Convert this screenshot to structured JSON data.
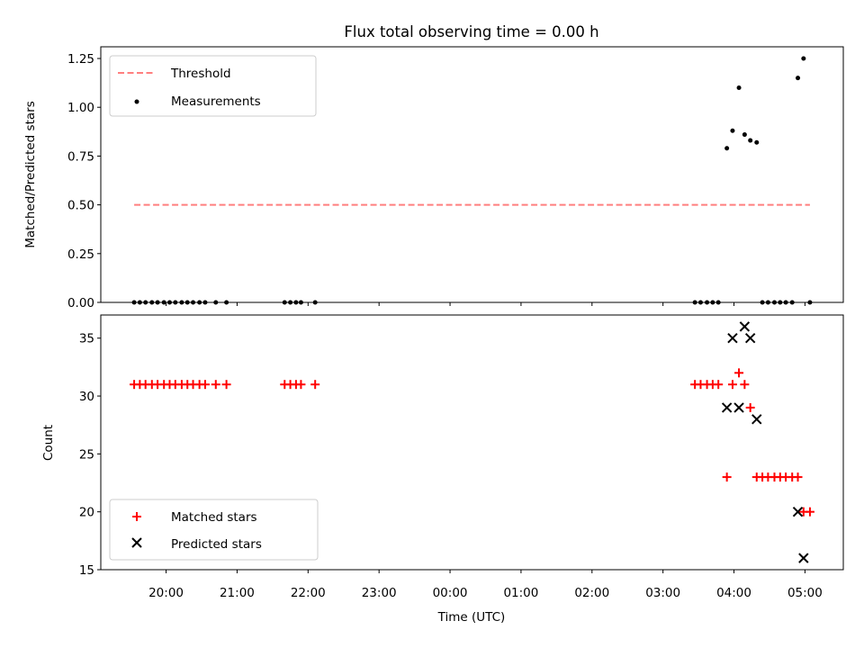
{
  "chart_data": [
    {
      "type": "scatter",
      "title": "Flux total observing time = 0.00 h",
      "xlabel": "",
      "ylabel": "Matched/Predicted stars",
      "x_axis": "Time (UTC), hours after 00:00 (negative = previous evening)",
      "ylim": [
        0,
        1.31
      ],
      "yticks": [
        "0.00",
        "0.25",
        "0.50",
        "0.75",
        "1.00",
        "1.25"
      ],
      "legend_position": "top-left",
      "threshold": {
        "name": "Threshold",
        "value": 0.5,
        "x_range": [
          -4.45,
          5.07
        ],
        "color": "#ff7f7f",
        "style": "dashed"
      },
      "series": [
        {
          "name": "Measurements",
          "color": "#000000",
          "marker": "dot",
          "points": [
            [
              -4.45,
              0
            ],
            [
              -4.37,
              0
            ],
            [
              -4.29,
              0
            ],
            [
              -4.2,
              0
            ],
            [
              -4.12,
              0
            ],
            [
              -4.03,
              0
            ],
            [
              -3.95,
              0
            ],
            [
              -3.87,
              0
            ],
            [
              -3.78,
              0
            ],
            [
              -3.7,
              0
            ],
            [
              -3.62,
              0
            ],
            [
              -3.53,
              0
            ],
            [
              -3.45,
              0
            ],
            [
              -3.3,
              0
            ],
            [
              -3.15,
              0
            ],
            [
              -2.33,
              0
            ],
            [
              -2.25,
              0
            ],
            [
              -2.17,
              0
            ],
            [
              -2.1,
              0
            ],
            [
              -1.9,
              0
            ],
            [
              3.45,
              0
            ],
            [
              3.53,
              0
            ],
            [
              3.62,
              0
            ],
            [
              3.7,
              0
            ],
            [
              3.78,
              0
            ],
            [
              3.9,
              0.79
            ],
            [
              3.98,
              0.88
            ],
            [
              4.07,
              1.1
            ],
            [
              4.15,
              0.86
            ],
            [
              4.23,
              0.83
            ],
            [
              4.32,
              0.82
            ],
            [
              4.4,
              0
            ],
            [
              4.48,
              0
            ],
            [
              4.57,
              0
            ],
            [
              4.65,
              0
            ],
            [
              4.73,
              0
            ],
            [
              4.82,
              0
            ],
            [
              4.9,
              1.15
            ],
            [
              4.98,
              1.25
            ],
            [
              5.07,
              0
            ]
          ]
        }
      ]
    },
    {
      "type": "scatter",
      "title": "",
      "xlabel": "Time (UTC)",
      "ylabel": "Count",
      "ylim": [
        15,
        37
      ],
      "yticks": [
        "15",
        "20",
        "25",
        "30",
        "35"
      ],
      "xticks": [
        "20:00",
        "21:00",
        "22:00",
        "23:00",
        "00:00",
        "01:00",
        "02:00",
        "03:00",
        "04:00",
        "05:00"
      ],
      "xtick_values": [
        -4,
        -3,
        -2,
        -1,
        0,
        1,
        2,
        3,
        4,
        5
      ],
      "xlim": [
        -4.92,
        5.54
      ],
      "legend_position": "bottom-left",
      "series": [
        {
          "name": "Matched stars",
          "color": "#ff0000",
          "marker": "plus",
          "points": [
            [
              -4.45,
              31
            ],
            [
              -4.37,
              31
            ],
            [
              -4.29,
              31
            ],
            [
              -4.2,
              31
            ],
            [
              -4.12,
              31
            ],
            [
              -4.03,
              31
            ],
            [
              -3.95,
              31
            ],
            [
              -3.87,
              31
            ],
            [
              -3.78,
              31
            ],
            [
              -3.7,
              31
            ],
            [
              -3.62,
              31
            ],
            [
              -3.53,
              31
            ],
            [
              -3.45,
              31
            ],
            [
              -3.3,
              31
            ],
            [
              -3.15,
              31
            ],
            [
              -2.33,
              31
            ],
            [
              -2.25,
              31
            ],
            [
              -2.17,
              31
            ],
            [
              -2.1,
              31
            ],
            [
              -1.9,
              31
            ],
            [
              3.45,
              31
            ],
            [
              3.53,
              31
            ],
            [
              3.62,
              31
            ],
            [
              3.7,
              31
            ],
            [
              3.78,
              31
            ],
            [
              3.9,
              23
            ],
            [
              3.98,
              31
            ],
            [
              4.07,
              32
            ],
            [
              4.15,
              31
            ],
            [
              4.23,
              29
            ],
            [
              4.32,
              23
            ],
            [
              4.4,
              23
            ],
            [
              4.48,
              23
            ],
            [
              4.57,
              23
            ],
            [
              4.65,
              23
            ],
            [
              4.73,
              23
            ],
            [
              4.82,
              23
            ],
            [
              4.9,
              23
            ],
            [
              4.98,
              20
            ],
            [
              5.07,
              20
            ]
          ]
        },
        {
          "name": "Predicted stars",
          "color": "#000000",
          "marker": "x",
          "points": [
            [
              3.9,
              29
            ],
            [
              3.98,
              35
            ],
            [
              4.07,
              29
            ],
            [
              4.15,
              36
            ],
            [
              4.23,
              35
            ],
            [
              4.32,
              28
            ],
            [
              4.9,
              20
            ],
            [
              4.98,
              16
            ]
          ]
        }
      ]
    }
  ]
}
